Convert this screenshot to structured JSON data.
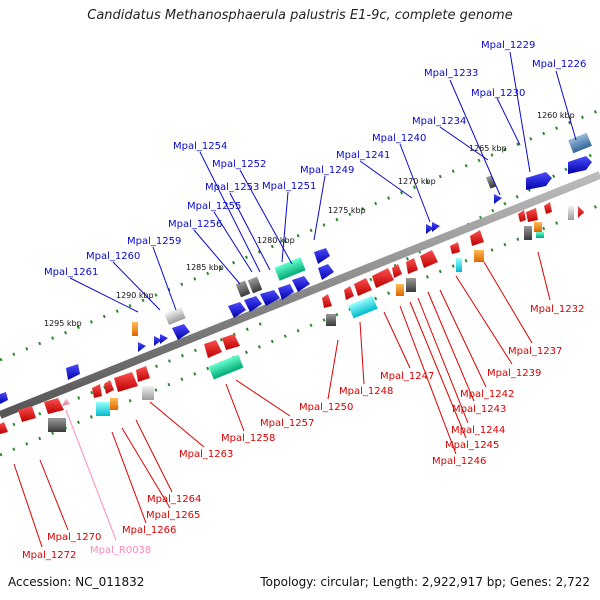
{
  "title": "Candidatus Methanosphaerula palustris E1-9c, complete genome",
  "accession": "Accession: NC_011832",
  "stats": "Topology: circular; Length: 2,922,917 bp; Genes: 2,722",
  "colors": {
    "forward": "#0a0acc",
    "reverse": "#dd0000",
    "rna": "#ff99cc",
    "backbone": "#808080"
  },
  "kbp_labels": [
    "1260 kbp",
    "1265 kbp",
    "1270 kbp",
    "1275 kbp",
    "1280 kbp",
    "1285 kbp",
    "1290 kbp",
    "1295 kbp"
  ],
  "upper_labels": [
    "Mpal_1229",
    "Mpal_1226",
    "Mpal_1233",
    "Mpal_1230",
    "Mpal_1234",
    "Mpal_1240",
    "Mpal_1241",
    "Mpal_1254",
    "Mpal_1252",
    "Mpal_1249",
    "Mpal_1253",
    "Mpal_1251",
    "Mpal_1255",
    "Mpal_1256",
    "Mpal_1259",
    "Mpal_1260",
    "Mpal_1261"
  ],
  "lower_labels": [
    "Mpal_1232",
    "Mpal_1237",
    "Mpal_1239",
    "Mpal_1242",
    "Mpal_1243",
    "Mpal_1244",
    "Mpal_1245",
    "Mpal_1246",
    "Mpal_1247",
    "Mpal_1248",
    "Mpal_1250",
    "Mpal_1257",
    "Mpal_1258",
    "Mpal_1263",
    "Mpal_1264",
    "Mpal_1265",
    "Mpal_1266",
    "Mpal_1270",
    "Mpal_1272",
    "Mpal_R0038"
  ]
}
